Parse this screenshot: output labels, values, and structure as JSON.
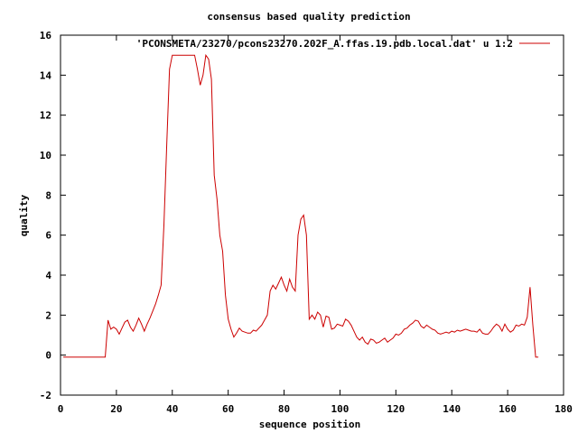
{
  "chart_data": {
    "type": "line",
    "title": "consensus based quality prediction",
    "xlabel": "sequence position",
    "ylabel": "quality",
    "xlim": [
      0,
      180
    ],
    "ylim": [
      -2,
      16
    ],
    "xticks": [
      0,
      20,
      40,
      60,
      80,
      100,
      120,
      140,
      160,
      180
    ],
    "yticks": [
      -2,
      0,
      2,
      4,
      6,
      8,
      10,
      12,
      14,
      16
    ],
    "grid": false,
    "legend_position": "top-right",
    "series": [
      {
        "name": "'PCONSMETA/23270/pcons23270.202F_A.ffas.19.pdb.local.dat' u 1:2",
        "color": "#cc0000",
        "x": [
          1,
          2,
          3,
          4,
          5,
          6,
          7,
          8,
          9,
          10,
          11,
          12,
          13,
          14,
          15,
          16,
          17,
          18,
          19,
          20,
          21,
          22,
          23,
          24,
          25,
          26,
          27,
          28,
          29,
          30,
          31,
          32,
          33,
          34,
          35,
          36,
          37,
          38,
          39,
          40,
          41,
          42,
          43,
          44,
          45,
          46,
          47,
          48,
          49,
          50,
          51,
          52,
          53,
          54,
          55,
          56,
          57,
          58,
          59,
          60,
          61,
          62,
          63,
          64,
          65,
          66,
          67,
          68,
          69,
          70,
          71,
          72,
          73,
          74,
          75,
          76,
          77,
          78,
          79,
          80,
          81,
          82,
          83,
          84,
          85,
          86,
          87,
          88,
          89,
          90,
          91,
          92,
          93,
          94,
          95,
          96,
          97,
          98,
          99,
          100,
          101,
          102,
          103,
          104,
          105,
          106,
          107,
          108,
          109,
          110,
          111,
          112,
          113,
          114,
          115,
          116,
          117,
          118,
          119,
          120,
          121,
          122,
          123,
          124,
          125,
          126,
          127,
          128,
          129,
          130,
          131,
          132,
          133,
          134,
          135,
          136,
          137,
          138,
          139,
          140,
          141,
          142,
          143,
          144,
          145,
          146,
          147,
          148,
          149,
          150,
          151,
          152,
          153,
          154,
          155,
          156,
          157,
          158,
          159,
          160,
          161,
          162,
          163,
          164,
          165,
          166,
          167,
          168,
          169,
          170,
          171
        ],
        "y": [
          -0.1,
          -0.1,
          -0.1,
          -0.1,
          -0.1,
          -0.1,
          -0.1,
          -0.1,
          -0.1,
          -0.1,
          -0.1,
          -0.1,
          -0.1,
          -0.1,
          -0.1,
          -0.1,
          1.75,
          1.3,
          1.4,
          1.3,
          1.05,
          1.35,
          1.65,
          1.75,
          1.4,
          1.2,
          1.5,
          1.85,
          1.55,
          1.2,
          1.55,
          1.85,
          2.2,
          2.55,
          3.0,
          3.5,
          6.5,
          10.5,
          14.3,
          15.0,
          15.0,
          15.0,
          15.0,
          15.0,
          15.0,
          15.0,
          15.0,
          15.0,
          14.3,
          13.5,
          14.0,
          15.0,
          14.8,
          13.8,
          9.0,
          7.8,
          6.0,
          5.2,
          3.0,
          1.8,
          1.3,
          0.9,
          1.1,
          1.35,
          1.2,
          1.15,
          1.1,
          1.1,
          1.25,
          1.2,
          1.35,
          1.5,
          1.75,
          2.0,
          3.2,
          3.5,
          3.3,
          3.6,
          3.9,
          3.5,
          3.2,
          3.8,
          3.4,
          3.2,
          6.0,
          6.8,
          7.0,
          6.0,
          1.8,
          2.0,
          1.8,
          2.15,
          2.0,
          1.4,
          1.95,
          1.9,
          1.3,
          1.35,
          1.55,
          1.5,
          1.45,
          1.8,
          1.7,
          1.5,
          1.2,
          0.9,
          0.75,
          0.9,
          0.65,
          0.55,
          0.8,
          0.75,
          0.6,
          0.65,
          0.75,
          0.85,
          0.65,
          0.75,
          0.85,
          1.05,
          1.0,
          1.1,
          1.3,
          1.35,
          1.5,
          1.6,
          1.75,
          1.7,
          1.45,
          1.35,
          1.5,
          1.4,
          1.3,
          1.25,
          1.1,
          1.05,
          1.1,
          1.15,
          1.1,
          1.2,
          1.15,
          1.25,
          1.2,
          1.25,
          1.3,
          1.25,
          1.2,
          1.2,
          1.15,
          1.3,
          1.1,
          1.05,
          1.05,
          1.2,
          1.4,
          1.55,
          1.45,
          1.2,
          1.55,
          1.3,
          1.15,
          1.25,
          1.5,
          1.45,
          1.55,
          1.5,
          1.9,
          3.4,
          1.5,
          -0.1,
          -0.1
        ]
      }
    ]
  }
}
